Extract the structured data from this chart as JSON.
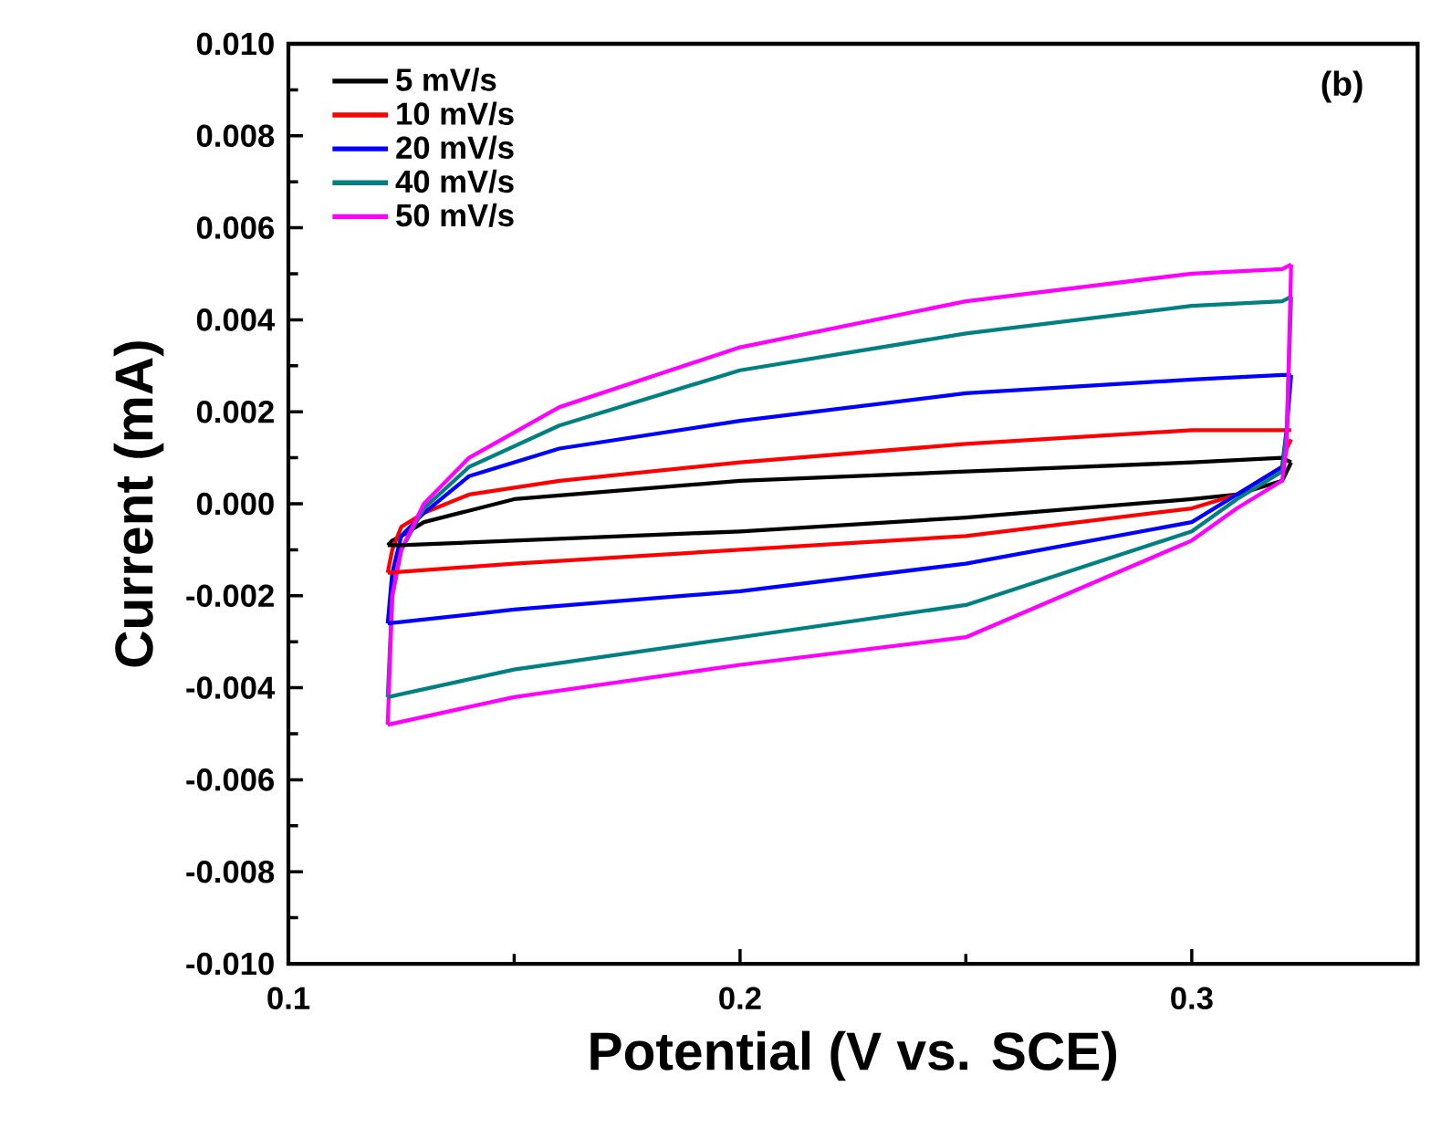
{
  "chart_data": {
    "type": "line",
    "xlabel": "Potential (V vs. SCE)",
    "ylabel": "Current (mA)",
    "annotations": [
      "(b)"
    ],
    "xlim": [
      0.1,
      0.35
    ],
    "xticks": [
      0.1,
      0.2,
      0.3
    ],
    "ylim": [
      -0.01,
      0.01
    ],
    "yticks": [
      {
        "value": -0.01,
        "label": "-0.010"
      },
      {
        "value": -0.008,
        "label": "-0.008"
      },
      {
        "value": -0.006,
        "label": "-0.006"
      },
      {
        "value": -0.004,
        "label": "-0.004"
      },
      {
        "value": -0.002,
        "label": "-0.002"
      },
      {
        "value": 0,
        "label": "0.000"
      },
      {
        "value": 0.002,
        "label": "0.002"
      },
      {
        "value": 0.004,
        "label": "0.004"
      },
      {
        "value": 0.006,
        "label": "0.006"
      },
      {
        "value": 0.008,
        "label": "0.008"
      },
      {
        "value": 0.01,
        "label": "0.010"
      }
    ],
    "grid": false,
    "legend": "top left",
    "marker": "none",
    "line_style": "solid",
    "series": [
      {
        "name": "5 mV/s",
        "color": "#000000",
        "x": [
          0.122,
          0.123,
          0.125,
          0.13,
          0.15,
          0.2,
          0.25,
          0.3,
          0.32,
          0.322
        ],
        "values": [
          -0.0009,
          -0.0008,
          -0.0007,
          -0.0004,
          0.0001,
          0.0005,
          0.0007,
          0.0009,
          0.001,
          0.0009
        ]
      },
      {
        "name": "10 mV/s",
        "color": "#ff0000",
        "x": [
          0.122,
          0.123,
          0.125,
          0.13,
          0.14,
          0.16,
          0.2,
          0.25,
          0.3,
          0.32,
          0.322
        ],
        "values": [
          -0.0015,
          -0.001,
          -0.0005,
          -0.0002,
          0.0002,
          0.0005,
          0.0009,
          0.0013,
          0.0016,
          0.0016,
          0.0016
        ]
      },
      {
        "name": "20 mV/s",
        "color": "#0000ff",
        "x": [
          0.122,
          0.123,
          0.125,
          0.13,
          0.14,
          0.16,
          0.2,
          0.25,
          0.3,
          0.32,
          0.322
        ],
        "values": [
          -0.0026,
          -0.0015,
          -0.0007,
          -0.0002,
          0.0006,
          0.0012,
          0.0018,
          0.0024,
          0.0027,
          0.0028,
          0.0028
        ]
      },
      {
        "name": "40 mV/s",
        "color": "#008080",
        "x": [
          0.122,
          0.123,
          0.125,
          0.13,
          0.14,
          0.16,
          0.2,
          0.25,
          0.3,
          0.32,
          0.322
        ],
        "values": [
          -0.0042,
          -0.002,
          -0.001,
          -0.0001,
          0.0008,
          0.0017,
          0.0029,
          0.0037,
          0.0043,
          0.0044,
          0.0045
        ]
      },
      {
        "name": "50 mV/s",
        "color": "#ff00ff",
        "x": [
          0.122,
          0.123,
          0.125,
          0.13,
          0.14,
          0.16,
          0.2,
          0.25,
          0.3,
          0.32,
          0.322
        ],
        "values": [
          -0.0048,
          -0.002,
          -0.001,
          0.0,
          0.001,
          0.0021,
          0.0034,
          0.0044,
          0.005,
          0.0051,
          0.0052
        ]
      },
      {
        "color": "#000000",
        "x": [
          0.322,
          0.321,
          0.32,
          0.31,
          0.3,
          0.25,
          0.2,
          0.15,
          0.125,
          0.122
        ],
        "values": [
          0.0009,
          0.0007,
          0.0005,
          0.0002,
          0.0001,
          -0.0003,
          -0.0006,
          -0.0008,
          -0.0009,
          -0.0009
        ]
      },
      {
        "color": "#ff0000",
        "x": [
          0.322,
          0.321,
          0.32,
          0.31,
          0.3,
          0.25,
          0.2,
          0.15,
          0.122
        ],
        "values": [
          0.0014,
          0.0012,
          0.0008,
          0.0002,
          -0.0001,
          -0.0007,
          -0.001,
          -0.0013,
          -0.0015
        ]
      },
      {
        "color": "#0000ff",
        "x": [
          0.322,
          0.321,
          0.32,
          0.31,
          0.3,
          0.25,
          0.2,
          0.15,
          0.122
        ],
        "values": [
          0.0028,
          0.0016,
          0.0008,
          0.0002,
          -0.0004,
          -0.0013,
          -0.0019,
          -0.0023,
          -0.0026
        ]
      },
      {
        "color": "#008080",
        "x": [
          0.322,
          0.321,
          0.32,
          0.31,
          0.3,
          0.25,
          0.2,
          0.15,
          0.122
        ],
        "values": [
          0.0045,
          0.0015,
          0.0007,
          0.0001,
          -0.0006,
          -0.0022,
          -0.0029,
          -0.0036,
          -0.0042
        ]
      },
      {
        "color": "#ff00ff",
        "x": [
          0.322,
          0.321,
          0.32,
          0.31,
          0.3,
          0.25,
          0.2,
          0.15,
          0.122
        ],
        "values": [
          0.0052,
          0.0012,
          0.0005,
          -0.0001,
          -0.0008,
          -0.0029,
          -0.0035,
          -0.0042,
          -0.0048
        ]
      }
    ]
  }
}
